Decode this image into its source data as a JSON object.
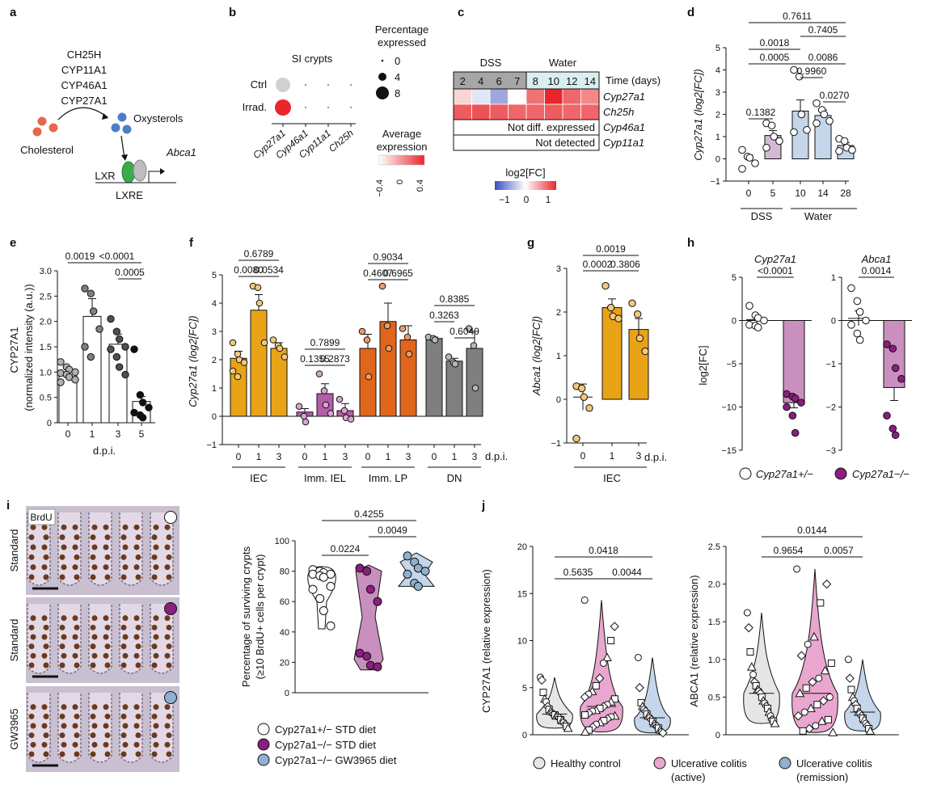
{
  "colors": {
    "ieс": "#E8A317",
    "iec": "#E8A317",
    "iel": "#B25DA6",
    "lp": "#E0661B",
    "dn": "#7F7F7F",
    "ko_purple": "#8B1E7E",
    "ko_light": "#C98FBF",
    "bluegrey": "#8FB0CF",
    "lightblue": "#C5D6EA",
    "mauve": "#D3B9D6",
    "red": "#E8262B",
    "grey": "#D0D0D0",
    "pink": "#E9A6CF"
  },
  "a": {
    "label": "a",
    "enzymes": [
      "CH25H",
      "CYP11A1",
      "CYP46A1",
      "CYP27A1"
    ],
    "oxysterols": "Oxysterols",
    "cholesterol": "Cholesterol",
    "abca1": "Abca1",
    "lxr": "LXR",
    "lxre": "LXRE"
  },
  "b": {
    "label": "b",
    "title": "SI crypts",
    "rows": [
      "Ctrl",
      "Irrad."
    ],
    "genes": [
      "Cyp27a1",
      "Cyp46a1",
      "Cyp11a1",
      "Ch25h"
    ],
    "size_title": "Percentage expressed",
    "size_values": [
      "0",
      "4",
      "8"
    ],
    "color_title": "Average expression",
    "color_ticks": [
      "−0.4",
      "0",
      "0.4"
    ]
  },
  "c": {
    "label": "c",
    "dss": "DSS",
    "water": "Water",
    "days": [
      "2",
      "4",
      "6",
      "7",
      "8",
      "10",
      "12",
      "14"
    ],
    "time_label": "Time (days)",
    "genes": [
      "Cyp27a1",
      "Ch25h",
      "Cyp46a1",
      "Cyp11a1"
    ],
    "not_diff": "Not diff. expressed",
    "not_detected": "Not detected",
    "legend_title": "log2[FC]",
    "legend_ticks": [
      "−1",
      "0",
      "1"
    ],
    "heat": [
      [
        0.2,
        -0.15,
        -0.5,
        0.0,
        0.65,
        1.0,
        0.7,
        0.55
      ],
      [
        0.75,
        0.8,
        0.75,
        0.7,
        0.7,
        0.75,
        0.7,
        0.7
      ]
    ]
  },
  "d": {
    "label": "d",
    "ylabel": "Cyp27a1 (log2[FC])",
    "yticks": [
      "−1",
      "0",
      "1",
      "2",
      "3",
      "4",
      "5"
    ],
    "groups": [
      {
        "x": "0",
        "mean": 0.0,
        "sem": 0.18,
        "fill": "#FFFFFF",
        "points": [
          0.4,
          0.1,
          0.05,
          -0.2,
          -0.45
        ]
      },
      {
        "x": "5",
        "mean": 1.05,
        "sem": 0.22,
        "fill": "#D3B9D6",
        "points": [
          1.6,
          1.5,
          1.0,
          0.8,
          0.5
        ]
      },
      {
        "x": "10",
        "mean": 2.15,
        "sem": 0.5,
        "fill": "#C5D6EA",
        "points": [
          4.0,
          3.7,
          2.0,
          1.3,
          1.2
        ]
      },
      {
        "x": "14",
        "mean": 1.95,
        "sem": 0.25,
        "fill": "#C5D6EA",
        "points": [
          2.5,
          2.2,
          2.0,
          1.7,
          1.6
        ]
      },
      {
        "x": "28",
        "mean": 0.6,
        "sem": 0.12,
        "fill": "#C5D6EA",
        "points": [
          0.9,
          0.8,
          0.5,
          0.4,
          0.35
        ]
      }
    ],
    "pvals": [
      "0.7611",
      "0.7405",
      "0.0018",
      "0.0005",
      "0.0086",
      "0.9960",
      "0.0270",
      "0.1382"
    ],
    "dss": "DSS",
    "water": "Water"
  },
  "e": {
    "label": "e",
    "ylabel1": "CYP27A1",
    "ylabel2": "(normalized intensity (a.u.))",
    "yticks": [
      "0",
      "0.5",
      "1.0",
      "1.5",
      "2.0",
      "2.5",
      "3.0"
    ],
    "xlabel": "d.p.i.",
    "groups": [
      {
        "x": "0",
        "mean": 1.0,
        "sem": 0.05,
        "fill": "#FFFFFF",
        "pfill": "#B0B0B0",
        "points": [
          1.2,
          1.1,
          1.05,
          1.0,
          0.98,
          0.95,
          0.9,
          0.85,
          0.8
        ]
      },
      {
        "x": "1",
        "mean": 2.1,
        "sem": 0.35,
        "fill": "#FFFFFF",
        "pfill": "#808080",
        "points": [
          2.65,
          2.55,
          2.2,
          1.85,
          1.5,
          1.3
        ]
      },
      {
        "x": "3",
        "mean": 1.55,
        "sem": 0.2,
        "fill": "#FFFFFF",
        "pfill": "#505050",
        "points": [
          2.05,
          1.8,
          1.65,
          1.5,
          1.45,
          1.3,
          1.1,
          0.95
        ]
      },
      {
        "x": "5",
        "mean": 0.42,
        "sem": 0.1,
        "fill": "#FFFFFF",
        "pfill": "#111111",
        "points": [
          1.45,
          0.55,
          0.4,
          0.3,
          0.2,
          0.15,
          0.1
        ]
      }
    ],
    "pvals": [
      "0.0019",
      "<0.0001",
      "0.0005"
    ]
  },
  "f": {
    "label": "f",
    "ylabel": "Cyp27a1 (log2[FC])",
    "yticks": [
      "−1",
      "0",
      "1",
      "2",
      "3",
      "4",
      "5"
    ],
    "dpi": "d.p.i.",
    "categories": [
      "IEC",
      "Imm. IEL",
      "Imm. LP",
      "DN"
    ],
    "xt": [
      "0",
      "1",
      "3"
    ],
    "groups": [
      [
        {
          "mean": 2.05,
          "sem": 0.25,
          "points": [
            2.6,
            2.2,
            2.0,
            1.9,
            1.6,
            1.4
          ]
        },
        {
          "mean": 3.75,
          "sem": 0.55,
          "points": [
            4.6,
            4.55,
            4.0,
            2.6
          ]
        },
        {
          "mean": 2.4,
          "sem": 0.2,
          "points": [
            2.7,
            2.5,
            2.4,
            2.1
          ]
        }
      ],
      [
        {
          "mean": 0.15,
          "sem": 0.12,
          "points": [
            0.35,
            0.0,
            -0.2
          ]
        },
        {
          "mean": 0.8,
          "sem": 0.35,
          "points": [
            1.5,
            0.9,
            0.4,
            0.1
          ]
        },
        {
          "mean": 0.2,
          "sem": 0.25,
          "points": [
            0.6,
            0.2,
            -0.05,
            -0.1
          ]
        }
      ],
      [
        {
          "mean": 2.4,
          "sem": 0.5,
          "points": [
            3.0,
            2.7,
            1.4
          ]
        },
        {
          "mean": 3.35,
          "sem": 0.65,
          "points": [
            4.6,
            3.2,
            2.4
          ]
        },
        {
          "mean": 2.7,
          "sem": 0.5,
          "points": [
            3.1,
            2.8,
            2.2
          ]
        }
      ],
      [
        {
          "mean": 2.75,
          "sem": 0.05,
          "points": [
            2.8,
            2.75,
            2.7
          ]
        },
        {
          "mean": 1.95,
          "sem": 0.1,
          "points": [
            2.1,
            1.9,
            1.85
          ]
        },
        {
          "mean": 2.4,
          "sem": 0.6,
          "points": [
            3.1,
            2.5,
            1.0
          ]
        }
      ]
    ],
    "pvals": {
      "iec": [
        "0.6789",
        "0.0080",
        "0.0534"
      ],
      "iel": [
        "0.7899",
        "0.1355",
        "0.2873"
      ],
      "lp": [
        "0.9034",
        "0.4607",
        "0.6965"
      ],
      "dn": [
        "0.8385",
        "0.3263",
        "0.6040"
      ]
    }
  },
  "g": {
    "label": "g",
    "ylabel": "Abca1 (log2[FC])",
    "yticks": [
      "−1",
      "0",
      "1",
      "2",
      "3"
    ],
    "xt": [
      "0",
      "1",
      "3"
    ],
    "dpi": "d.p.i.",
    "cat": "IEC",
    "groups": [
      {
        "mean": 0.05,
        "sem": 0.3,
        "points": [
          0.3,
          0.25,
          0.05,
          -0.2,
          -0.9
        ]
      },
      {
        "mean": 2.1,
        "sem": 0.2,
        "points": [
          2.6,
          2.1,
          1.9,
          1.85
        ]
      },
      {
        "mean": 1.6,
        "sem": 0.25,
        "points": [
          2.2,
          1.95,
          1.4,
          1.1
        ]
      }
    ],
    "pvals": [
      "0.0019",
      "0.0002",
      "0.3806"
    ]
  },
  "h": {
    "label": "h",
    "panel1": {
      "title": "Cyp27a1",
      "yticks": [
        "−15",
        "−10",
        "−5",
        "0",
        "5"
      ],
      "pval": "<0.0001",
      "het": {
        "mean": 0.1,
        "sem": 0.5,
        "points": [
          1.7,
          0.6,
          0.3,
          0.0,
          -0.5,
          -0.6,
          -0.8
        ]
      },
      "ko": {
        "mean": -9.5,
        "sem": 0.6,
        "points": [
          -8.5,
          -8.8,
          -9.0,
          -9.5,
          -10.0,
          -11.0,
          -13.0
        ]
      }
    },
    "panel2": {
      "title": "Abca1",
      "yticks": [
        "−3",
        "−2",
        "−1",
        "0",
        "1"
      ],
      "pval": "0.0014",
      "het": {
        "mean": 0.05,
        "sem": 0.17,
        "points": [
          0.75,
          0.45,
          0.2,
          0.0,
          -0.1,
          -0.3,
          -0.45
        ]
      },
      "ko": {
        "mean": -1.55,
        "sem": 0.3,
        "points": [
          -0.55,
          -0.65,
          -1.1,
          -1.35,
          -2.2,
          -2.5,
          -2.65
        ]
      }
    },
    "ylabel": "log2[FC]",
    "legend": [
      "Cyp27a1+/−",
      "Cyp27a1−/−"
    ]
  },
  "i": {
    "label": "i",
    "brdu": "BrdU",
    "rows": [
      "Standard",
      "Standard",
      "GW3965"
    ],
    "row_dots": [
      "#FFFFFF",
      "#8B1E7E",
      "#8FB0CF"
    ],
    "ylabel1": "Percentage of surviving crypts",
    "ylabel2": "(≥10 BrdU+ cells per crypt)",
    "yticks": [
      "0",
      "20",
      "40",
      "60",
      "80",
      "100"
    ],
    "pvals": [
      "0.4255",
      "0.0224",
      "0.0049"
    ],
    "legend": [
      "Cyp27a1+/− STD diet",
      "Cyp27a1−/− STD diet",
      "Cyp27a1−/− GW3965 diet"
    ],
    "violins": [
      {
        "fill": "#FFFFFF",
        "dot": "#FFFFFF",
        "points": [
          81,
          80,
          79,
          78,
          78,
          77,
          76,
          70,
          68,
          62,
          54,
          44
        ]
      },
      {
        "fill": "#C98FBF",
        "dot": "#8B1E7E",
        "points": [
          82,
          80,
          68,
          60,
          26,
          24,
          18,
          17
        ]
      },
      {
        "fill": "#C5D6EA",
        "dot": "#8FB0CF",
        "points": [
          90,
          86,
          82,
          80,
          78,
          72,
          70
        ]
      }
    ]
  },
  "j": {
    "label": "j",
    "p1": {
      "ylabel": "CYP27A1 (relative expression)",
      "yticks": [
        "0",
        "5",
        "10",
        "15",
        "20"
      ],
      "pvals": [
        "0.0418",
        "0.5635",
        "0.0044"
      ]
    },
    "p2": {
      "ylabel": "ABCA1 (relative expression)",
      "yticks": [
        "0",
        "0.5",
        "1.0",
        "1.5",
        "2.0",
        "2.5"
      ],
      "pvals": [
        "0.0144",
        "0.9654",
        "0.0057"
      ]
    },
    "legend": [
      "Healthy control",
      "Ulcerative colitis",
      "(active)",
      "Ulcerative colitis",
      "(remission)"
    ],
    "violin_fills": [
      "#E6E6E6",
      "#E9A6CF",
      "#C5D6EA"
    ],
    "cyp_groups": [
      [
        6.1,
        5.8,
        4.5,
        3.8,
        3.5,
        3.0,
        2.7,
        2.5,
        2.3,
        2.2,
        2.1,
        2.0,
        1.9,
        1.8,
        1.6,
        1.5,
        1.3,
        1.1,
        0.9,
        0.7
      ],
      [
        14.3,
        11.5,
        10.0,
        8.2,
        7.6,
        6.0,
        5.2,
        4.6,
        4.3,
        4.0,
        3.8,
        3.5,
        3.2,
        3.0,
        2.8,
        2.6,
        2.5,
        2.3,
        2.1,
        2.0,
        1.9,
        1.7,
        1.5,
        1.3,
        1.1,
        0.8,
        0.5,
        0.3
      ],
      [
        8.2,
        5.0,
        3.4,
        3.0,
        2.7,
        2.5,
        2.2,
        2.0,
        1.8,
        1.6,
        1.4,
        1.2,
        1.0,
        0.9,
        0.7,
        0.5,
        0.3,
        0.2
      ]
    ],
    "abca_groups": [
      [
        1.62,
        1.42,
        1.1,
        0.9,
        0.8,
        0.7,
        0.65,
        0.6,
        0.58,
        0.55,
        0.5,
        0.45,
        0.42,
        0.38,
        0.35,
        0.3,
        0.25,
        0.2,
        0.18,
        0.15
      ],
      [
        2.2,
        2.0,
        1.75,
        1.3,
        1.2,
        1.05,
        0.95,
        0.85,
        0.75,
        0.7,
        0.62,
        0.55,
        0.5,
        0.45,
        0.4,
        0.35,
        0.3,
        0.25,
        0.2,
        0.18,
        0.12,
        0.08,
        0.05,
        0.03
      ],
      [
        1.0,
        0.75,
        0.6,
        0.5,
        0.45,
        0.4,
        0.35,
        0.3,
        0.28,
        0.25,
        0.22,
        0.2,
        0.15,
        0.12,
        0.08,
        0.05
      ]
    ]
  }
}
